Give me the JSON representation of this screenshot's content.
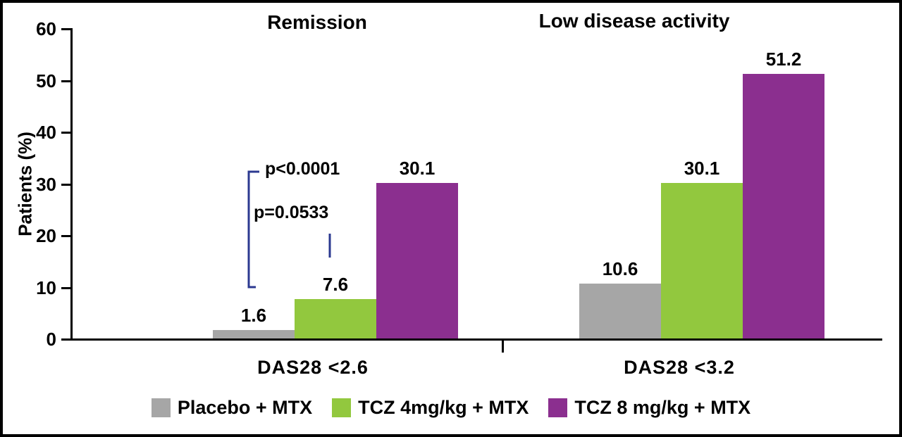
{
  "figure": {
    "background": "#ffffff",
    "border_color": "#000000"
  },
  "chart_data": {
    "type": "bar",
    "ylabel": "Patients (%)",
    "ylim": [
      0,
      60
    ],
    "yticks": [
      0,
      10,
      20,
      30,
      40,
      50,
      60
    ],
    "grid": false,
    "legend_position": "bottom",
    "bracket_color": "#2b3990",
    "groups": [
      {
        "label": "DAS28 <2.6",
        "title": "Remission"
      },
      {
        "label": "DAS28 <3.2",
        "title": "Low disease activity"
      }
    ],
    "series": [
      {
        "name": "Placebo + MTX",
        "color": "#a6a6a6",
        "values": [
          1.6,
          10.6
        ]
      },
      {
        "name": "TCZ 4mg/kg + MTX",
        "color": "#92c83e",
        "values": [
          7.6,
          30.1
        ]
      },
      {
        "name": "TCZ 8 mg/kg + MTX",
        "color": "#8b2f8f",
        "values": [
          30.1,
          51.2
        ]
      }
    ],
    "annotations": [
      {
        "label": "p<0.0001"
      },
      {
        "label": "p=0.0533"
      }
    ]
  }
}
